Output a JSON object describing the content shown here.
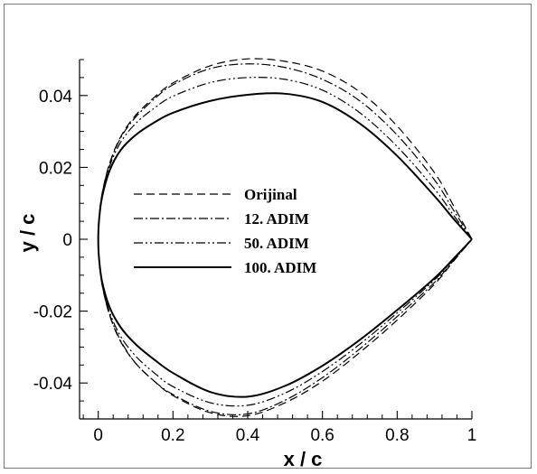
{
  "chart_data": {
    "type": "line",
    "xlabel": "x / c",
    "ylabel": "y / c",
    "xlim": [
      -0.05,
      1.0
    ],
    "ylim": [
      -0.05,
      0.05
    ],
    "xticks": [
      0,
      0.2,
      0.4,
      0.6,
      0.8,
      1
    ],
    "xtick_labels": [
      "0",
      "0.2",
      "0.4",
      "0.6",
      "0.8",
      "1"
    ],
    "yticks": [
      0.04,
      0.02,
      0,
      -0.02,
      -0.04
    ],
    "ytick_labels": [
      "0.04",
      "0.02",
      "0",
      "-0.02",
      "-0.04"
    ],
    "legend_position": "center-left",
    "series": [
      {
        "name": "Orijinal",
        "style": "dashed",
        "x": [
          1.0,
          0.95,
          0.9,
          0.8,
          0.7,
          0.6,
          0.5,
          0.4,
          0.3,
          0.2,
          0.15,
          0.1,
          0.06,
          0.03,
          0.01,
          0.002,
          0.0,
          0.002,
          0.01,
          0.03,
          0.06,
          0.1,
          0.15,
          0.2,
          0.3,
          0.4,
          0.5,
          0.6,
          0.7,
          0.8,
          0.9,
          0.95,
          1.0
        ],
        "y": [
          0.0,
          0.0095,
          0.0185,
          0.0315,
          0.041,
          0.0468,
          0.0495,
          0.0502,
          0.0483,
          0.0435,
          0.0395,
          0.0345,
          0.0285,
          0.021,
          0.0125,
          0.0055,
          0.0,
          -0.0055,
          -0.0125,
          -0.021,
          -0.0285,
          -0.0345,
          -0.0395,
          -0.0435,
          -0.0483,
          -0.0491,
          -0.0455,
          -0.0395,
          -0.0315,
          -0.0225,
          -0.0125,
          -0.0062,
          0.0
        ]
      },
      {
        "name": "12. ADIM",
        "style": "dash-dot",
        "x": [
          1.0,
          0.95,
          0.9,
          0.8,
          0.7,
          0.6,
          0.5,
          0.4,
          0.3,
          0.2,
          0.15,
          0.1,
          0.06,
          0.03,
          0.01,
          0.002,
          0.0,
          0.002,
          0.01,
          0.03,
          0.06,
          0.1,
          0.15,
          0.2,
          0.3,
          0.4,
          0.5,
          0.6,
          0.7,
          0.8,
          0.9,
          0.95,
          1.0
        ],
        "y": [
          0.0,
          0.0082,
          0.0165,
          0.029,
          0.0385,
          0.0445,
          0.0478,
          0.0488,
          0.0475,
          0.043,
          0.039,
          0.034,
          0.0282,
          0.0208,
          0.0124,
          0.0054,
          0.0,
          -0.0054,
          -0.0124,
          -0.0208,
          -0.0282,
          -0.0345,
          -0.0395,
          -0.0432,
          -0.0479,
          -0.0486,
          -0.0448,
          -0.0385,
          -0.0305,
          -0.0215,
          -0.012,
          -0.006,
          0.0
        ]
      },
      {
        "name": "50. ADIM",
        "style": "dash-dot-dot",
        "x": [
          1.0,
          0.95,
          0.9,
          0.8,
          0.7,
          0.6,
          0.5,
          0.4,
          0.3,
          0.2,
          0.15,
          0.1,
          0.06,
          0.03,
          0.01,
          0.002,
          0.0,
          0.002,
          0.01,
          0.03,
          0.06,
          0.1,
          0.15,
          0.2,
          0.3,
          0.4,
          0.5,
          0.6,
          0.7,
          0.8,
          0.9,
          0.95,
          1.0
        ],
        "y": [
          0.0,
          0.0068,
          0.014,
          0.0258,
          0.0352,
          0.0415,
          0.0445,
          0.045,
          0.0436,
          0.0398,
          0.0365,
          0.0322,
          0.027,
          0.0202,
          0.0121,
          0.0053,
          0.0,
          -0.0053,
          -0.0121,
          -0.0202,
          -0.027,
          -0.0325,
          -0.0372,
          -0.041,
          -0.0455,
          -0.0462,
          -0.0428,
          -0.0368,
          -0.0292,
          -0.0205,
          -0.0113,
          -0.0057,
          0.0
        ]
      },
      {
        "name": "100. ADIM",
        "style": "solid",
        "x": [
          1.0,
          0.95,
          0.9,
          0.8,
          0.7,
          0.6,
          0.5,
          0.4,
          0.3,
          0.2,
          0.15,
          0.1,
          0.06,
          0.03,
          0.01,
          0.002,
          0.0,
          0.002,
          0.01,
          0.03,
          0.06,
          0.1,
          0.15,
          0.2,
          0.3,
          0.4,
          0.5,
          0.6,
          0.7,
          0.8,
          0.9,
          0.95,
          1.0
        ],
        "y": [
          0.0,
          0.0058,
          0.012,
          0.0232,
          0.0322,
          0.0382,
          0.0405,
          0.0402,
          0.0385,
          0.0352,
          0.0325,
          0.029,
          0.0248,
          0.019,
          0.0116,
          0.0051,
          0.0,
          -0.0051,
          -0.0116,
          -0.0188,
          -0.0245,
          -0.0292,
          -0.0335,
          -0.0372,
          -0.0425,
          -0.0438,
          -0.0408,
          -0.0352,
          -0.028,
          -0.0197,
          -0.0108,
          -0.0055,
          0.0
        ]
      }
    ]
  }
}
